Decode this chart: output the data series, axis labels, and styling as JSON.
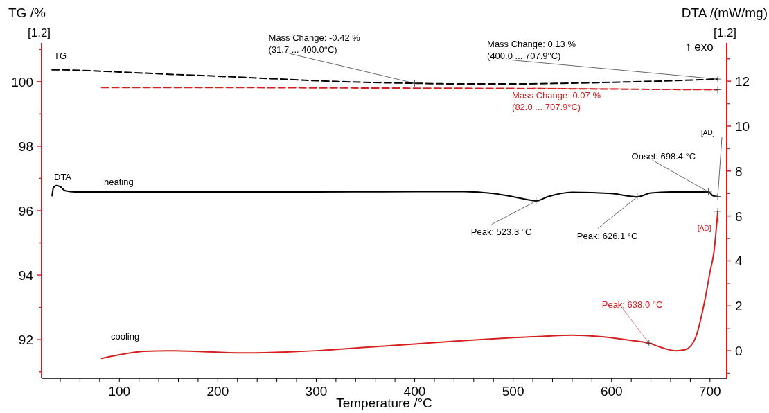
{
  "chart_data": {
    "type": "line",
    "xlabel": "Temperature /°C",
    "ylabel": "TG /%",
    "y2label": "DTA /(mW/mg)",
    "xlim": [
      21,
      717
    ],
    "xticks": [
      {
        "value": 40,
        "label": null
      },
      {
        "value": 60,
        "label": null
      },
      {
        "value": 80,
        "label": null
      },
      100,
      {
        "value": 120,
        "label": null
      },
      {
        "value": 140,
        "label": null
      },
      {
        "value": 160,
        "label": null
      },
      {
        "value": 180,
        "label": null
      },
      200,
      {
        "value": 220,
        "label": null
      },
      {
        "value": 240,
        "label": null
      },
      {
        "value": 260,
        "label": null
      },
      {
        "value": 280,
        "label": null
      },
      300,
      {
        "value": 320,
        "label": null
      },
      {
        "value": 340,
        "label": null
      },
      {
        "value": 360,
        "label": null
      },
      {
        "value": 380,
        "label": null
      },
      400,
      {
        "value": 420,
        "label": null
      },
      {
        "value": 440,
        "label": null
      },
      {
        "value": 460,
        "label": null
      },
      {
        "value": 480,
        "label": null
      },
      500,
      {
        "value": 520,
        "label": null
      },
      {
        "value": 540,
        "label": null
      },
      {
        "value": 560,
        "label": null
      },
      {
        "value": 580,
        "label": null
      },
      600,
      {
        "value": 620,
        "label": null
      },
      {
        "value": 640,
        "label": null
      },
      {
        "value": 660,
        "label": null
      },
      {
        "value": 680,
        "label": null
      },
      700
    ],
    "ylim": [
      90.8,
      101.2
    ],
    "yticks": [
      {
        "value": 91,
        "label": null
      },
      92,
      {
        "value": 93,
        "label": null
      },
      94,
      {
        "value": 95,
        "label": null
      },
      96,
      {
        "value": 97,
        "label": null
      },
      98,
      {
        "value": 99,
        "label": null
      },
      100,
      {
        "value": 101,
        "label": null
      }
    ],
    "y2lim": [
      -1.23,
      13.7
    ],
    "y2ticks": [
      {
        "value": -1,
        "label": null
      },
      0,
      {
        "value": 1,
        "label": null
      },
      2,
      {
        "value": 3,
        "label": null
      },
      4,
      {
        "value": 5,
        "label": null
      },
      6,
      {
        "value": 7,
        "label": null
      },
      8,
      {
        "value": 9,
        "label": null
      },
      10,
      {
        "value": 11,
        "label": null
      },
      12,
      {
        "value": 13,
        "label": null
      }
    ],
    "marker": "none",
    "series": [
      {
        "color": "#000000",
        "line_style": "dashed",
        "x": [
          31.7,
          50,
          100,
          150,
          200,
          250,
          300,
          350,
          400,
          450,
          500,
          550,
          600,
          650,
          690,
          707.9
        ],
        "values": [
          100.37,
          100.36,
          100.3,
          100.23,
          100.17,
          100.1,
          100.03,
          99.98,
          99.95,
          99.93,
          99.93,
          99.95,
          99.98,
          100.02,
          100.06,
          100.08
        ]
      },
      {
        "color": "#d42020",
        "line_style": "dashed",
        "x": [
          82,
          200,
          300,
          400,
          500,
          600,
          707.9
        ],
        "values": [
          99.82,
          99.82,
          99.81,
          99.8,
          99.79,
          99.77,
          99.75
        ]
      },
      {
        "color": "#000000",
        "line_style": "solid",
        "axis": "y2",
        "x": [
          31.7,
          33,
          36,
          40,
          45,
          55,
          100,
          200,
          300,
          400,
          450,
          480,
          500,
          515,
          523.3,
          535,
          560,
          600,
          615,
          626.1,
          640,
          660,
          690,
          698.4,
          703,
          707.9
        ],
        "values": [
          6.9,
          7.25,
          7.35,
          7.3,
          7.12,
          7.07,
          7.07,
          7.07,
          7.07,
          7.08,
          7.08,
          7.0,
          6.85,
          6.72,
          6.67,
          6.85,
          7.05,
          7.0,
          6.9,
          6.85,
          7.02,
          7.07,
          7.07,
          7.07,
          6.9,
          6.86
        ]
      },
      {
        "color": "#d42020",
        "line_style": "solid",
        "axis": "y2",
        "x": [
          82,
          100,
          125,
          150,
          190,
          230,
          270,
          300,
          350,
          400,
          450,
          500,
          530,
          560,
          590,
          620,
          638,
          650,
          665,
          675,
          685,
          695,
          700,
          704,
          707.9
        ],
        "values": [
          -0.34,
          -0.18,
          -0.03,
          0.0,
          -0.05,
          -0.1,
          -0.06,
          0.0,
          0.15,
          0.3,
          0.45,
          0.58,
          0.64,
          0.69,
          0.62,
          0.46,
          0.34,
          0.15,
          0.0,
          0.05,
          0.55,
          2.3,
          3.5,
          4.4,
          6.2
        ]
      }
    ],
    "annotations": [
      "TG",
      "DTA",
      "heating",
      "cooling",
      "↑ exo",
      "[1.2]",
      "[1.2]",
      {
        "text": "Mass Change:  -0.42 %\n(31.7 ... 400.0°C)",
        "x": 400,
        "y": 99.95
      },
      {
        "text": "Mass Change:  0.13 %\n(400.0 ... 707.9°C)",
        "x": 707.9,
        "y": 100.08
      },
      {
        "text": "Mass Change:  0.07 %\n(82.0 ... 707.9°C)",
        "x": 707.9,
        "y": 99.75
      },
      {
        "text": "Peak: 523.3 °C",
        "x": 523.3,
        "y": 96.3
      },
      {
        "text": "Peak: 626.1 °C",
        "x": 626.1,
        "y": 96.43
      },
      {
        "text": "Onset: 698.4 °C",
        "x": 698.4,
        "y": 96.58
      },
      {
        "text": "[AD]",
        "x": 707.9,
        "y": 96.44
      },
      {
        "text": "[AD]",
        "x": 707.9,
        "y": 95.98
      },
      {
        "text": "Peak: 638.0 °C",
        "x": 638,
        "y": 91.89
      }
    ]
  }
}
